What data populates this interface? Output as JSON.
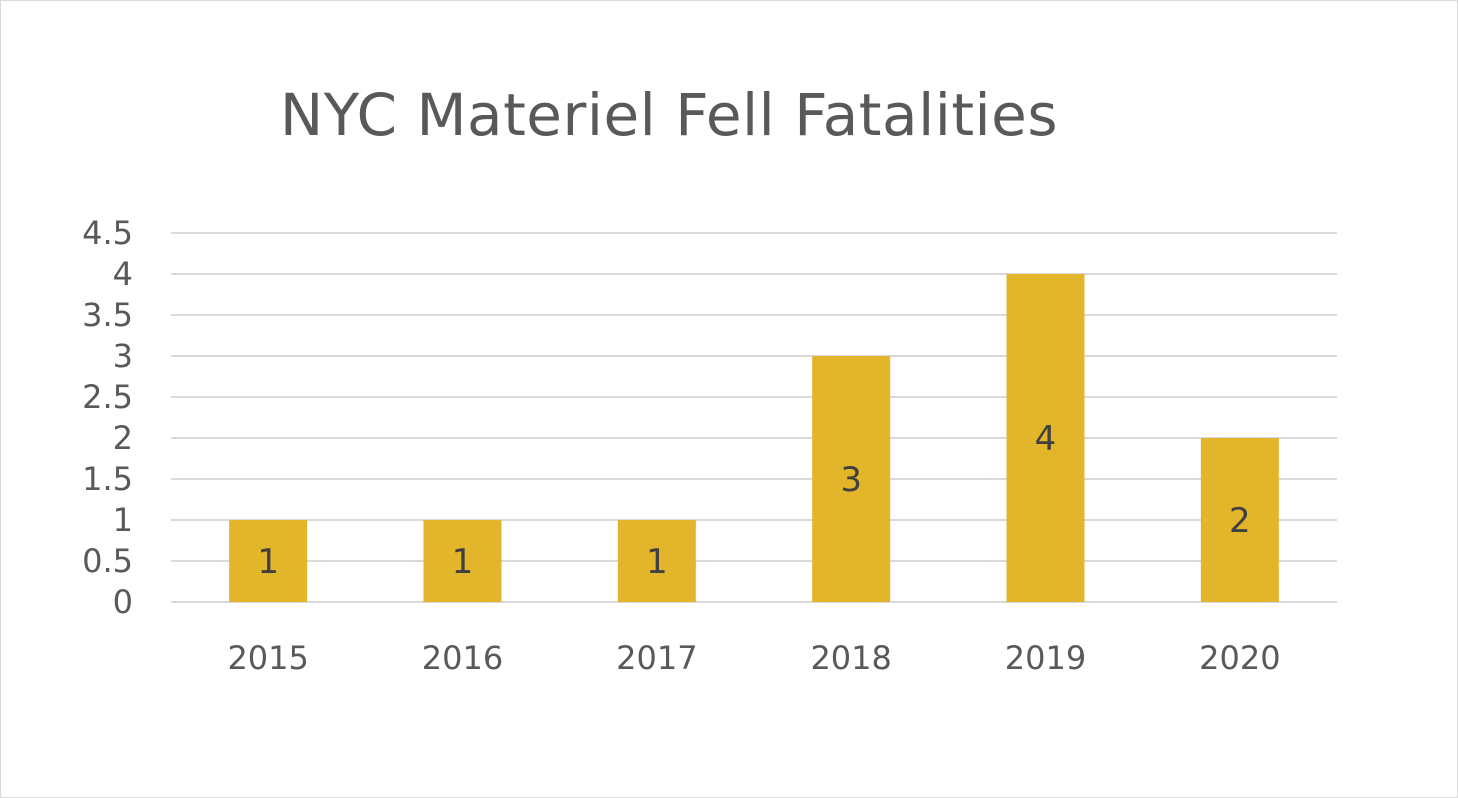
{
  "chart_data": {
    "type": "bar",
    "title": "NYC Materiel Fell Fatalities",
    "categories": [
      "2015",
      "2016",
      "2017",
      "2018",
      "2019",
      "2020"
    ],
    "values": [
      1,
      1,
      1,
      3,
      4,
      2
    ],
    "ylim": [
      0,
      4.5
    ],
    "yticks": [
      "0",
      "0.5",
      "1",
      "1.5",
      "2",
      "2.5",
      "3",
      "3.5",
      "4",
      "4.5"
    ],
    "grid": true,
    "data_labels": true,
    "bar_color": "#e3b52a",
    "grid_color": "#d9d9d9",
    "text_color": "#595959"
  }
}
